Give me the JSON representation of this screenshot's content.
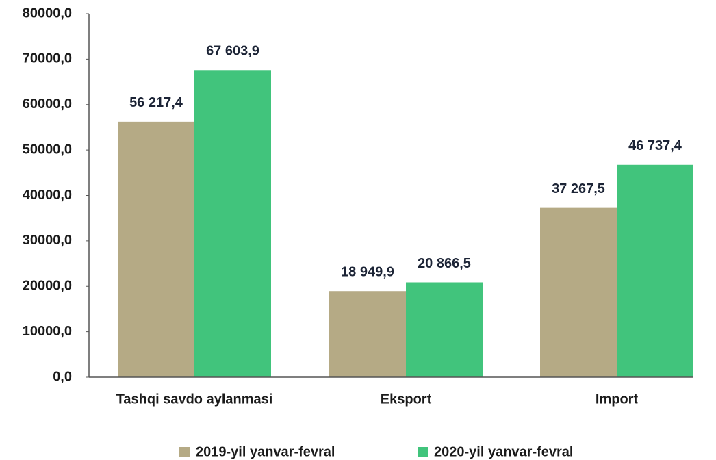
{
  "chart_data": {
    "type": "bar",
    "categories": [
      "Tashqi savdo aylanmasi",
      "Eksport",
      "Import"
    ],
    "series": [
      {
        "name": "2019-yil yanvar-fevral",
        "color": "#b5aa85",
        "values": [
          56217.4,
          18949.9,
          37267.5
        ],
        "value_labels": [
          "56 217,4",
          "18 949,9",
          "37 267,5"
        ]
      },
      {
        "name": "2020-yil yanvar-fevral",
        "color": "#41c47c",
        "values": [
          67603.9,
          20866.5,
          46737.4
        ],
        "value_labels": [
          "67 603,9",
          "20 866,5",
          "46 737,4"
        ]
      }
    ],
    "ylim": [
      0,
      80000
    ],
    "yticks": [
      {
        "value": 0,
        "label": "0,0"
      },
      {
        "value": 10000,
        "label": "10000,0"
      },
      {
        "value": 20000,
        "label": "20000,0"
      },
      {
        "value": 30000,
        "label": "30000,0"
      },
      {
        "value": 40000,
        "label": "40000,0"
      },
      {
        "value": 50000,
        "label": "50000,0"
      },
      {
        "value": 60000,
        "label": "60000,0"
      },
      {
        "value": 70000,
        "label": "70000,0"
      },
      {
        "value": 80000,
        "label": "80000,0"
      }
    ],
    "grid": false,
    "legend": "bottom"
  }
}
